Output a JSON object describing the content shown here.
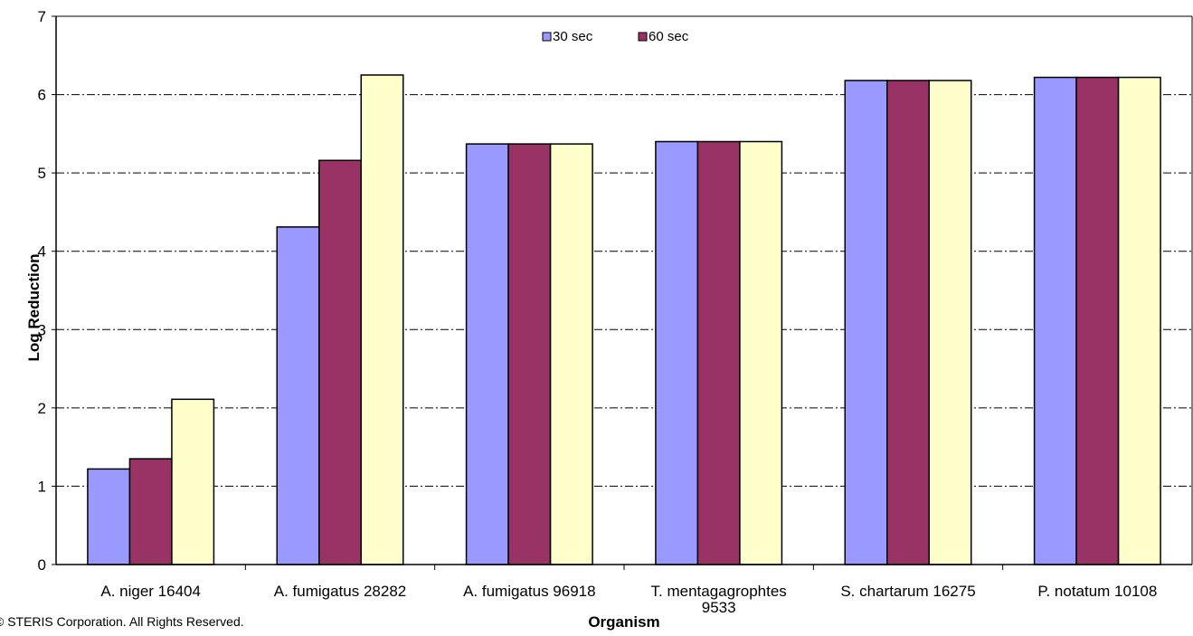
{
  "chart_data": {
    "type": "bar",
    "title": "",
    "xlabel": "Organism",
    "ylabel": "Log Reduction",
    "ylim": [
      0,
      7
    ],
    "yticks": [
      "0",
      "1",
      "2",
      "3",
      "4",
      "5",
      "6",
      "7"
    ],
    "grid": "horizontal dash-dot",
    "legend_position": "top-center",
    "categories": [
      [
        "A. niger 16404"
      ],
      [
        "A. fumigatus 28282"
      ],
      [
        "A. fumigatus 96918"
      ],
      [
        "T. mentagagrophtes",
        "9533"
      ],
      [
        "S. chartarum 16275"
      ],
      [
        "P. notatum 10108"
      ]
    ],
    "series": [
      {
        "name": "30 sec",
        "color": "#9999ff",
        "values": [
          1.22,
          4.31,
          5.37,
          5.4,
          6.18,
          6.22
        ]
      },
      {
        "name": "60 sec",
        "color": "#993366",
        "values": [
          1.35,
          5.16,
          5.37,
          5.4,
          6.18,
          6.22
        ]
      },
      {
        "name": "",
        "color": "#ffffcc",
        "values": [
          2.11,
          6.25,
          5.37,
          5.4,
          6.18,
          6.22
        ]
      }
    ]
  },
  "footer": "© STERIS Corporation.  All Rights Reserved."
}
